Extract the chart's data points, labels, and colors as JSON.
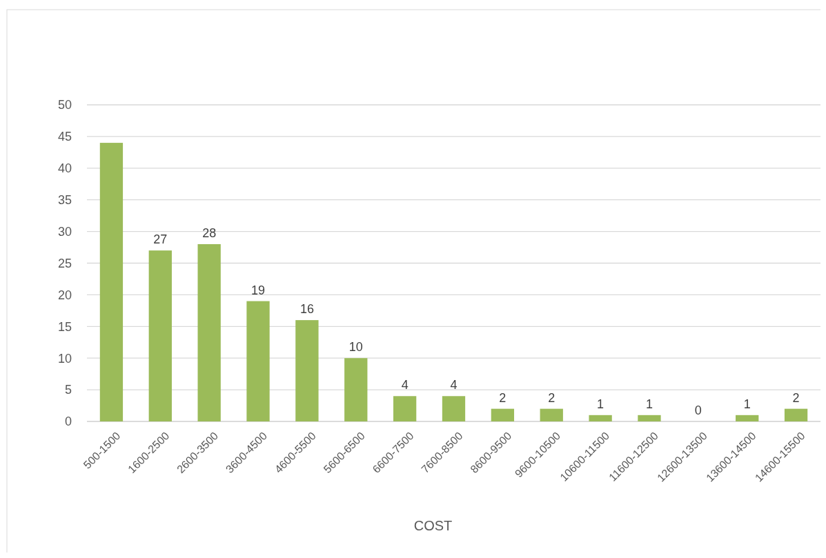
{
  "chart_data": {
    "type": "bar",
    "xlabel": "COST",
    "categories": [
      "500-1500",
      "1600-2500",
      "2600-3500",
      "3600-4500",
      "4600-5500",
      "5600-6500",
      "6600-7500",
      "7600-8500",
      "8600-9500",
      "9600-10500",
      "10600-11500",
      "11600-12500",
      "12600-13500",
      "13600-14500",
      "14600-15500"
    ],
    "values": [
      44,
      27,
      28,
      19,
      16,
      10,
      4,
      4,
      2,
      2,
      1,
      1,
      0,
      1,
      2
    ],
    "value_labels": [
      null,
      "27",
      "28",
      "19",
      "16",
      "10",
      "4",
      "4",
      "2",
      "2",
      "1",
      "1",
      "0",
      "1",
      "2"
    ],
    "color": "#9bbb59",
    "ylim": [
      0,
      50
    ],
    "yticks": [
      0,
      5,
      10,
      15,
      20,
      25,
      30,
      35,
      40,
      45,
      50
    ],
    "grid": "y"
  }
}
